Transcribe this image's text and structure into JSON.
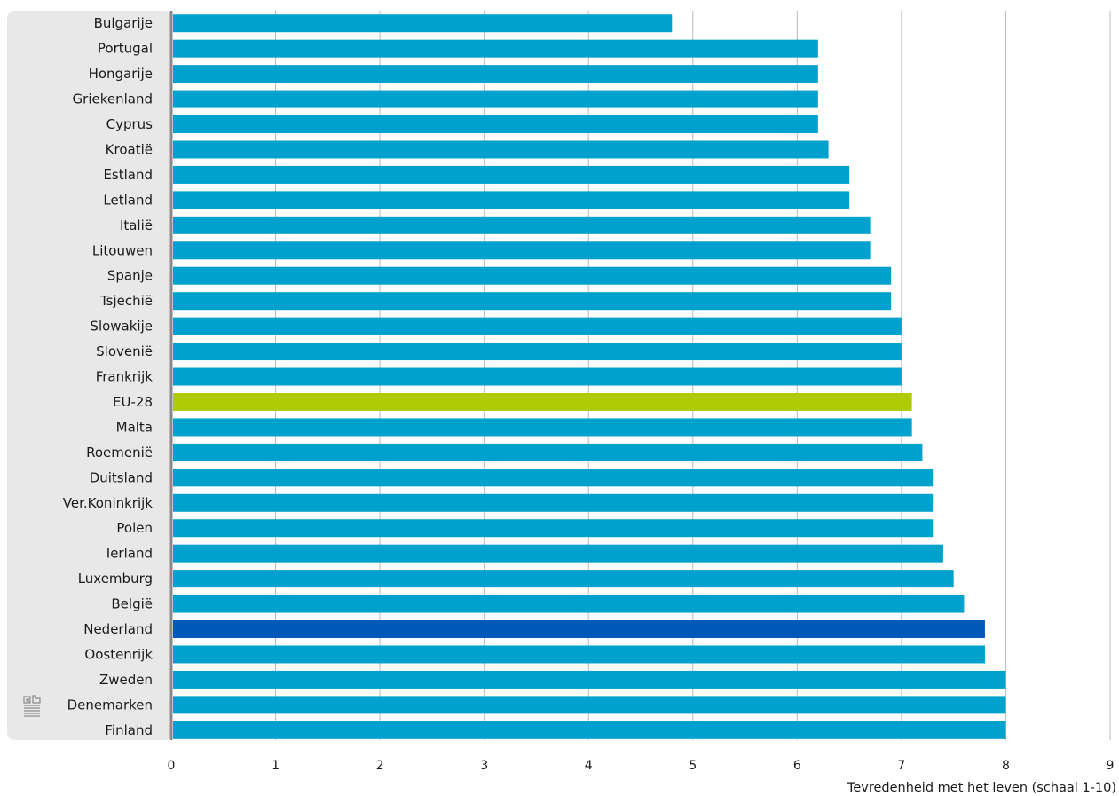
{
  "chart_data": {
    "type": "bar",
    "orientation": "horizontal",
    "title": "",
    "xlabel": "Tevredenheid met het leven (schaal 1-10)",
    "ylabel": "",
    "xlim": [
      0,
      9
    ],
    "x_ticks": [
      "0",
      "1",
      "2",
      "3",
      "4",
      "5",
      "6",
      "7",
      "8",
      "9"
    ],
    "grid": "vertical lines",
    "categories": [
      "Bulgarije",
      "Portugal",
      "Hongarije",
      "Griekenland",
      "Cyprus",
      "Kroatië",
      "Estland",
      "Letland",
      "Italië",
      "Litouwen",
      "Spanje",
      "Tsjechië",
      "Slowakije",
      "Slovenië",
      "Frankrijk",
      "EU-28",
      "Malta",
      "Roemenië",
      "Duitsland",
      "Ver.Koninkrijk",
      "Polen",
      "Ierland",
      "Luxemburg",
      "België",
      "Nederland",
      "Oostenrijk",
      "Zweden",
      "Denemarken",
      "Finland"
    ],
    "values": [
      4.8,
      6.2,
      6.2,
      6.2,
      6.2,
      6.3,
      6.5,
      6.5,
      6.7,
      6.7,
      6.9,
      6.9,
      7.0,
      7.0,
      7.0,
      7.1,
      7.1,
      7.2,
      7.3,
      7.3,
      7.3,
      7.4,
      7.5,
      7.6,
      7.8,
      7.8,
      8.0,
      8.0,
      8.0
    ],
    "colors": {
      "default": "#00a1cd",
      "EU-28": "#afcb05",
      "Nederland": "#0058b8",
      "grid": "#b8b8b8",
      "label_panel": "#e8e8e8",
      "axis": "#8a8a8a"
    }
  },
  "logo": {
    "icon": "cbs-logo-icon"
  }
}
